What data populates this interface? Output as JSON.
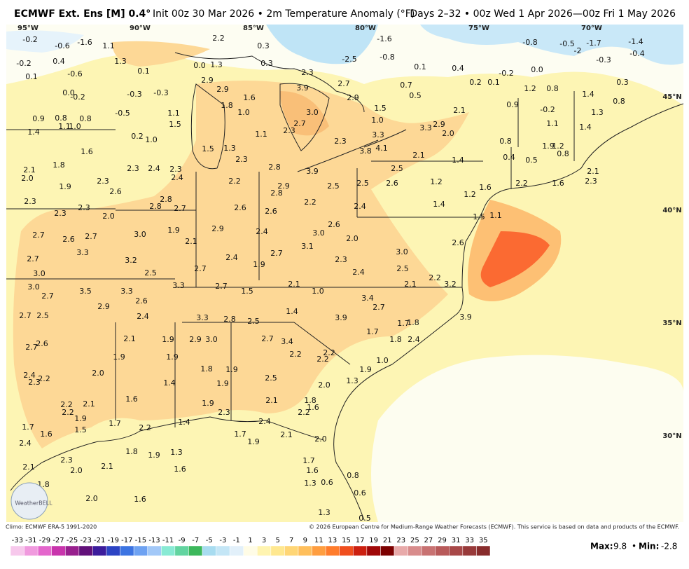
{
  "header": {
    "title_bold": "ECMWF Ext. Ens [M] 0.4°",
    "title_rest": "Init 00z 30 Mar 2026 • 2m Temperature Anomaly (°F)",
    "period": "Days 2–32 • 00z Wed 1 Apr 2026—00z Fri 1 May 2026"
  },
  "map": {
    "lon_labels": [
      "95°W",
      "90°W",
      "85°W",
      "80°W",
      "75°W",
      "70°W"
    ],
    "lat_labels": [
      "45°N",
      "40°N",
      "35°N",
      "30°N"
    ],
    "points": [
      "-0.2",
      "-0.6",
      "-1.6",
      "1.1",
      "2.2",
      "0.3",
      "-1.6",
      "-0.8",
      "-0.5",
      "-2",
      "-1.7",
      "-1.4",
      "-0.4",
      "-0.2",
      "0.4",
      "1.3",
      "0.0",
      "1.3",
      "0.3",
      "-2.5",
      "-0.8",
      "0.1",
      "0.4",
      "-0.3",
      "0.1",
      "-0.6",
      "0.1",
      "2.3",
      "-0.2",
      "0.0",
      "0.3",
      "2.9",
      "2.7",
      "0.7",
      "0.2",
      "0.1",
      "1.2",
      "0.8",
      "1.4",
      "0.0",
      "-0.2",
      "-0.3",
      "-0.3",
      "2.9",
      "3.9",
      "2.9",
      "0.5",
      "0.9",
      "0.8",
      "0.8",
      "1.1",
      "1.0",
      "-0.5",
      "1.1",
      "1.8",
      "1.6",
      "1.0",
      "3.0",
      "1.5",
      "2.1",
      "0.9",
      "-0.2",
      "0.8",
      "1.3",
      "1.4",
      "1.5",
      "2.7",
      "2.3",
      "1.0",
      "3.3",
      "2.9",
      "1.1",
      "1.4",
      "0.2",
      "1.0",
      "1.1",
      "3.3",
      "2.0",
      "0.8",
      "1.6",
      "1.5",
      "1.3",
      "2.3",
      "4.1",
      "3.8",
      "1.9",
      "1.2",
      "0.8",
      "2.3",
      "2.1",
      "1.4",
      "0.4",
      "0.5",
      "1.8",
      "2.3",
      "2.4",
      "2.3",
      "2.8",
      "3.9",
      "2.5",
      "2.1",
      "2.1",
      "2.0",
      "2.4",
      "2.2",
      "2.3",
      "2.5",
      "2.6",
      "1.2",
      "1.6",
      "2.2",
      "1.6",
      "2.3",
      "1.9",
      "2.9",
      "2.5",
      "2.6",
      "1.2",
      "2.3",
      "2.8",
      "2.8",
      "2.2",
      "1.4",
      "2.3",
      "2.8",
      "2.7",
      "2.6",
      "2.4",
      "2.6",
      "2.3",
      "2.0",
      "1.5",
      "1.1",
      "2.9",
      "2.6",
      "1.9",
      "2.4",
      "3.0",
      "2.7",
      "2.6",
      "2.7",
      "3.0",
      "2.1",
      "2.0",
      "2.6",
      "3.0",
      "3.3",
      "3.1",
      "2.7",
      "2.4",
      "3.2",
      "2.3",
      "2.7",
      "1.9",
      "2.7",
      "2.5",
      "2.4",
      "2.5",
      "2.2",
      "3.0",
      "3.0",
      "3.3",
      "2.7",
      "2.1",
      "2.1",
      "3.2",
      "3.5",
      "3.3",
      "1.5",
      "1.0",
      "2.7",
      "2.9",
      "2.6",
      "3.4",
      "2.7",
      "1.4",
      "2.7",
      "2.5",
      "2.4",
      "3.3",
      "2.8",
      "2.5",
      "3.9",
      "1.7",
      "1.8",
      "3.9",
      "1.7",
      "2.1",
      "1.9",
      "2.9",
      "3.0",
      "2.7",
      "3.4",
      "1.8",
      "2.4",
      "2.7",
      "2.6",
      "1.9",
      "1.9",
      "2.2",
      "2.2",
      "2.2",
      "1.0",
      "1.8",
      "1.9",
      "1.9",
      "2.0",
      "2.4",
      "2.2",
      "2.3",
      "2.5",
      "1.4",
      "1.9",
      "2.0",
      "1.3",
      "1.6",
      "2.1",
      "1.8",
      "1.6",
      "1.9",
      "2.2",
      "2.1",
      "2.2",
      "2.3",
      "2.2",
      "1.9",
      "1.7",
      "1.4",
      "2.4",
      "1.7",
      "1.5",
      "2.2",
      "1.6",
      "1.7",
      "2.1",
      "1.9",
      "2.0",
      "2.4",
      "1.8",
      "1.3",
      "1.9",
      "2.3",
      "1.7",
      "2.1",
      "2.0",
      "2.1",
      "1.6",
      "1.6",
      "0.8",
      "0.6",
      "1.3",
      "1.8",
      "0.6",
      "2.0",
      "1.6",
      "1.3",
      "0.5"
    ],
    "logo": "WeatherBELL"
  },
  "footer": {
    "climo": "Climo: ECMWF ERA-5 1991-2020",
    "copyright": "© 2026 European Centre for Medium-Range Weather Forecasts (ECMWF). This service is based on data and products of the ECMWF.",
    "max_label": "Max:",
    "max": "9.8",
    "separator": "•",
    "min_label": "Min:",
    "min": "-2.8"
  },
  "colorbar": {
    "ticks": [
      -33,
      -31,
      -29,
      -27,
      -25,
      -23,
      -21,
      -19,
      -17,
      -15,
      -13,
      -11,
      -9,
      -7,
      -5,
      -3,
      -1,
      1,
      3,
      5,
      7,
      9,
      11,
      13,
      15,
      17,
      19,
      21,
      23,
      25,
      27,
      29,
      31,
      33,
      35
    ],
    "colors": [
      "#f7c8ec",
      "#f09ade",
      "#e466cc",
      "#c834ac",
      "#98208e",
      "#62107a",
      "#3c1c9c",
      "#2c44c4",
      "#3c74e2",
      "#6ea2f2",
      "#a2c8f8",
      "#88ead4",
      "#62d4a0",
      "#3cb85c",
      "#a8dcf0",
      "#c4e6f6",
      "#e2f0fa",
      "#fffce6",
      "#fff4b0",
      "#ffe890",
      "#ffd676",
      "#ffbf5c",
      "#ff9e40",
      "#ff7c2c",
      "#f04e1e",
      "#cc2010",
      "#a00808",
      "#7c0000",
      "#e8aaaa",
      "#d88c8c",
      "#c87272",
      "#b85a5a",
      "#a84848",
      "#983a3a",
      "#882c2c"
    ]
  }
}
